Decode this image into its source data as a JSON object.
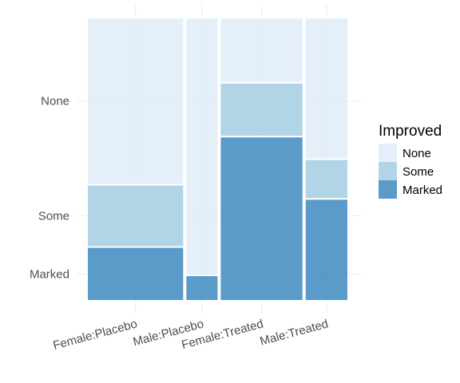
{
  "chart_data": {
    "type": "mosaic",
    "x_categories": [
      "Female:Placebo",
      "Male:Placebo",
      "Female:Treated",
      "Male:Treated"
    ],
    "x_proportions": [
      0.378,
      0.128,
      0.325,
      0.169
    ],
    "y_categories": [
      "None",
      "Some",
      "Marked"
    ],
    "y_tick_labels": [
      "None",
      "Some",
      "Marked"
    ],
    "series": [
      {
        "name": "Marked",
        "values": [
          0.19,
          0.09,
          0.58,
          0.36
        ]
      },
      {
        "name": "Some",
        "values": [
          0.22,
          0.0,
          0.19,
          0.14
        ]
      },
      {
        "name": "None",
        "values": [
          0.59,
          0.91,
          0.23,
          0.5
        ]
      }
    ],
    "legend": {
      "title": "Improved",
      "entries": [
        "None",
        "Some",
        "Marked"
      ],
      "position": "right"
    },
    "colors": {
      "None": "#deebf7",
      "Some": "#9ecae1",
      "Marked": "#3182bd"
    },
    "fill_opacity": 0.8,
    "grid": true
  }
}
